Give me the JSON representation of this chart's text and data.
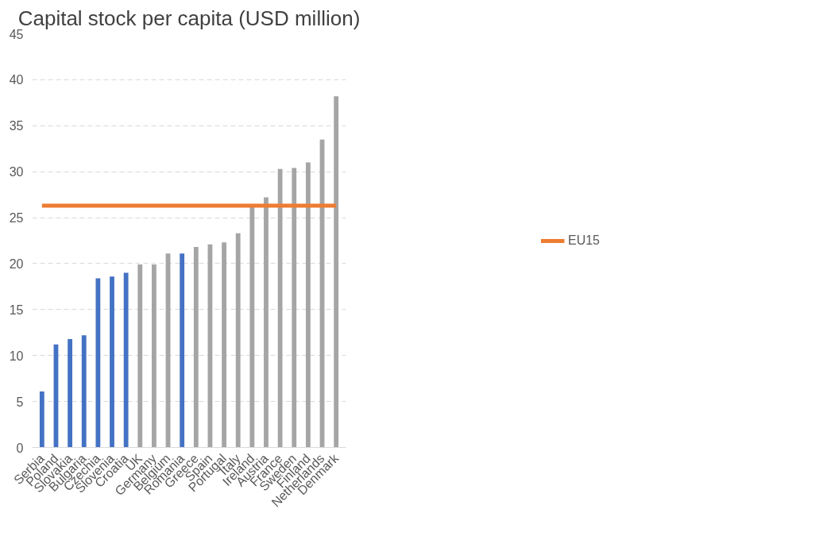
{
  "chart_data": {
    "type": "bar",
    "title": "Capital stock per capita (USD million)",
    "categories": [
      "Serbia",
      "Poland",
      "Slovakia",
      "Bulgaria",
      "Czechia",
      "Slovenia",
      "Croatia",
      "UK",
      "Germany",
      "Belgium",
      "Romania",
      "Greece",
      "Spain",
      "Portugal",
      "Italy",
      "Ireland",
      "Austria",
      "France",
      "Sweden",
      "Finland",
      "Netherlands",
      "Denmark"
    ],
    "series": [
      {
        "values": [
          6.1,
          11.2,
          11.8,
          12.2,
          18.4,
          18.6,
          19.0,
          19.9,
          19.9,
          21.1,
          21.1,
          21.8,
          22.1,
          22.3,
          23.3,
          26.3,
          27.2,
          30.3,
          30.4,
          31.0,
          33.5,
          38.2
        ],
        "colors": [
          "#4472c4",
          "#4472c4",
          "#4472c4",
          "#4472c4",
          "#4472c4",
          "#4472c4",
          "#4472c4",
          "#a5a5a5",
          "#a5a5a5",
          "#a5a5a5",
          "#4472c4",
          "#a5a5a5",
          "#a5a5a5",
          "#a5a5a5",
          "#a5a5a5",
          "#a5a5a5",
          "#a5a5a5",
          "#a5a5a5",
          "#a5a5a5",
          "#a5a5a5",
          "#a5a5a5",
          "#a5a5a5"
        ]
      },
      {
        "type": "line",
        "name": "EU15",
        "color": "#ed7d31",
        "values": [
          26.3,
          26.3,
          26.3,
          26.3,
          26.3,
          26.3,
          26.3,
          26.3,
          26.3,
          26.3,
          26.3,
          26.3,
          26.3,
          26.3,
          26.3,
          26.3,
          26.3,
          26.3,
          26.3,
          26.3,
          26.3,
          26.3
        ]
      }
    ],
    "ylim": [
      0,
      45
    ],
    "yticks": [
      0,
      5,
      10,
      15,
      20,
      25,
      30,
      35,
      40,
      45
    ],
    "grid": "y",
    "legend": "right"
  }
}
